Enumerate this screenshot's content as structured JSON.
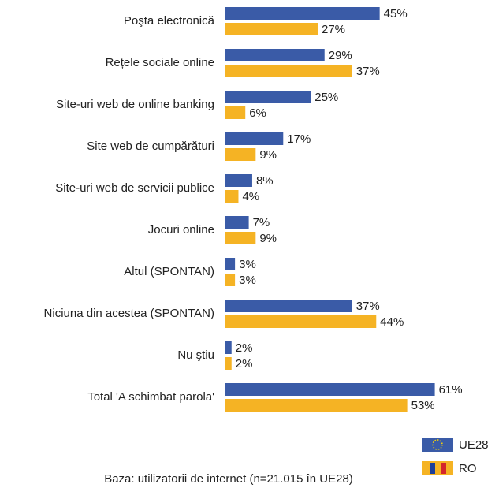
{
  "chart_data": {
    "type": "bar",
    "orientation": "horizontal",
    "categories": [
      "Poşta electronică",
      "Rețele sociale online",
      "Site-uri web de online banking",
      "Site web de cumpărături",
      "Site-uri web de servicii publice",
      "Jocuri online",
      "Altul (SPONTAN)",
      "Niciuna din acestea (SPONTAN)",
      "Nu ştiu",
      "Total 'A schimbat parola'"
    ],
    "series": [
      {
        "name": "UE28",
        "color": "#3a5ba7",
        "values": [
          45,
          29,
          25,
          17,
          8,
          7,
          3,
          37,
          2,
          61
        ],
        "value_labels": [
          "45%",
          "29%",
          "25%",
          "17%",
          "8%",
          "7%",
          "3%",
          "37%",
          "2%",
          "61%"
        ]
      },
      {
        "name": "RO",
        "color": "#f5b324",
        "values": [
          27,
          37,
          6,
          9,
          4,
          9,
          3,
          44,
          2,
          53
        ],
        "value_labels": [
          "27%",
          "37%",
          "6%",
          "9%",
          "4%",
          "9%",
          "3%",
          "44%",
          "2%",
          "53%"
        ]
      }
    ],
    "footnote": "Baza: utilizatorii de internet (n=21.015 în UE28)"
  }
}
